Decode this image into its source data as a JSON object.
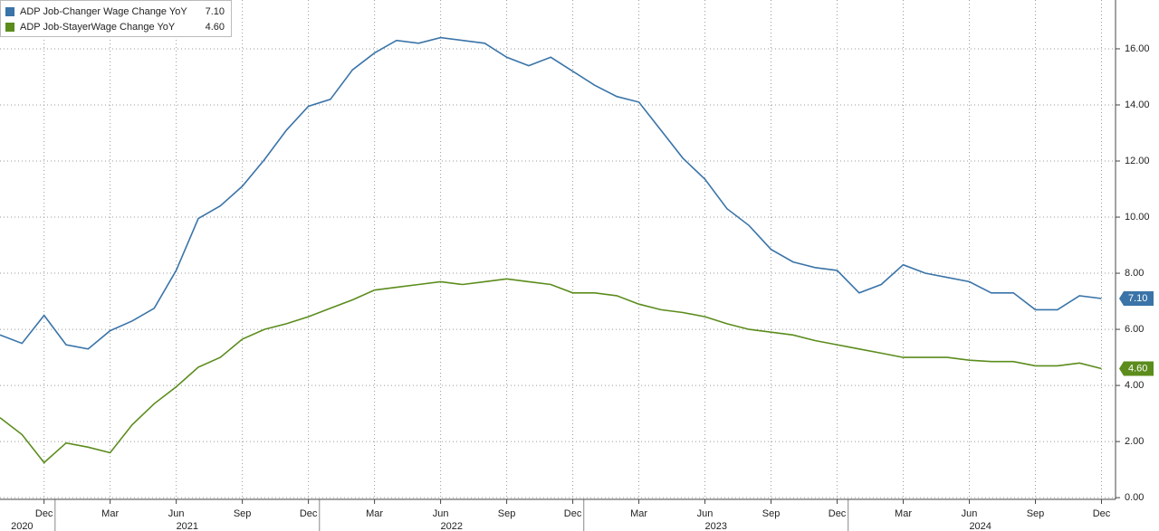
{
  "chart_data": {
    "type": "line",
    "categories": [
      null,
      null,
      "Dec",
      null,
      null,
      "Mar",
      null,
      null,
      "Jun",
      null,
      null,
      "Sep",
      null,
      null,
      "Dec",
      null,
      null,
      "Mar",
      null,
      null,
      "Jun",
      null,
      null,
      "Sep",
      null,
      null,
      "Dec",
      null,
      null,
      "Mar",
      null,
      null,
      "Jun",
      null,
      null,
      "Sep",
      null,
      null,
      "Dec",
      null,
      null,
      "Mar",
      null,
      null,
      "Jun",
      null,
      null,
      "Sep",
      null,
      null,
      "Dec"
    ],
    "category_groups": [
      {
        "label": "2020",
        "first": 0,
        "last": 2
      },
      {
        "label": "2021",
        "first": 3,
        "last": 14
      },
      {
        "label": "2022",
        "first": 15,
        "last": 26
      },
      {
        "label": "2023",
        "first": 27,
        "last": 38
      },
      {
        "label": "2024",
        "first": 39,
        "last": 50
      }
    ],
    "series": [
      {
        "name": "ADP Job-Changer Wage Change YoY",
        "color": "#3a74a8",
        "last_label": "7.10",
        "values": [
          5.8,
          5.5,
          6.5,
          5.45,
          5.3,
          5.95,
          6.3,
          6.75,
          8.1,
          9.95,
          10.4,
          11.1,
          12.05,
          13.1,
          13.95,
          14.2,
          15.25,
          15.85,
          16.3,
          16.2,
          16.4,
          16.3,
          16.2,
          15.7,
          15.4,
          15.7,
          15.2,
          14.7,
          14.3,
          14.1,
          13.1,
          12.1,
          11.35,
          10.3,
          9.7,
          8.85,
          8.4,
          8.2,
          8.1,
          7.3,
          7.6,
          8.3,
          8.0,
          7.85,
          7.7,
          7.3,
          7.3,
          6.7,
          6.7,
          7.2,
          7.1
        ]
      },
      {
        "name": "ADP Job-StayerWage Change YoY",
        "color": "#5b8c1c",
        "last_label": "4.60",
        "values": [
          2.85,
          2.25,
          1.25,
          1.95,
          1.8,
          1.6,
          2.6,
          3.35,
          3.95,
          4.65,
          5.0,
          5.65,
          6.0,
          6.2,
          6.45,
          6.75,
          7.05,
          7.4,
          7.5,
          7.6,
          7.7,
          7.6,
          7.7,
          7.8,
          7.7,
          7.6,
          7.3,
          7.3,
          7.2,
          6.9,
          6.7,
          6.6,
          6.45,
          6.2,
          6.0,
          5.9,
          5.8,
          5.6,
          5.45,
          5.3,
          5.15,
          5.0,
          5.0,
          5.0,
          4.9,
          4.85,
          4.85,
          4.7,
          4.7,
          4.8,
          4.6
        ]
      }
    ],
    "ylim": [
      -0.06,
      17.74
    ],
    "yticks": [
      {
        "value": 0,
        "label": "0.00"
      },
      {
        "value": 2,
        "label": "2.00"
      },
      {
        "value": 4,
        "label": "4.00"
      },
      {
        "value": 6,
        "label": "6.00"
      },
      {
        "value": 8,
        "label": "8.00"
      },
      {
        "value": 10,
        "label": "10.00"
      },
      {
        "value": 12,
        "label": "12.00"
      },
      {
        "value": 14,
        "label": "14.00"
      },
      {
        "value": 16,
        "label": "16.00"
      }
    ],
    "grid": true,
    "legend": "top-left"
  }
}
